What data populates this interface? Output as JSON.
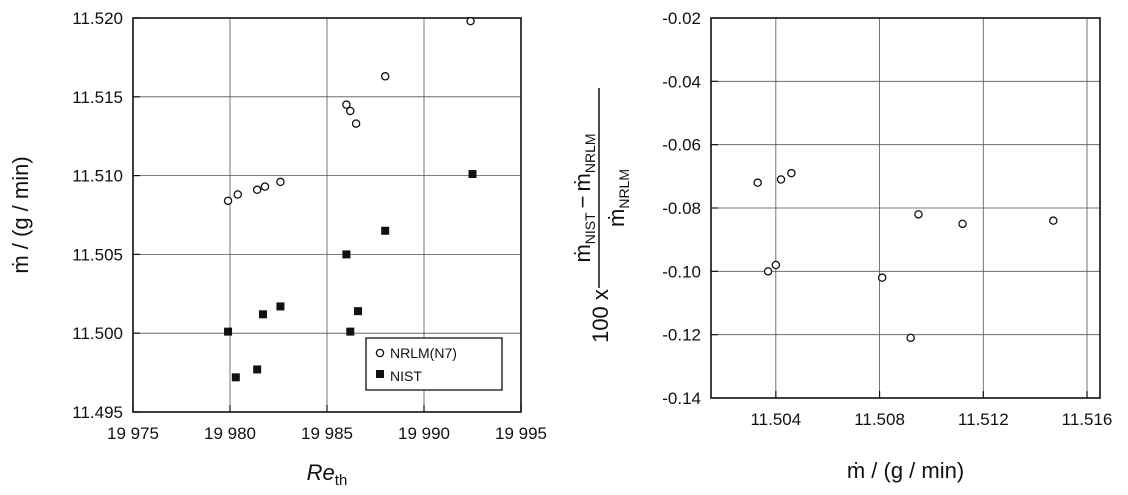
{
  "chart_data": [
    {
      "type": "scatter",
      "xlabel": "Re",
      "xlabel_sub": "th",
      "ylabel": "ṁ / (g / min)",
      "xlim": [
        19975,
        19995
      ],
      "ylim": [
        11.495,
        11.52
      ],
      "xticks": [
        19975,
        19980,
        19985,
        19990,
        19995
      ],
      "xtick_labels": [
        "19 975",
        "19 980",
        "19 985",
        "19 990",
        "19 995"
      ],
      "yticks": [
        11.495,
        11.5,
        11.505,
        11.51,
        11.515,
        11.52
      ],
      "ytick_labels": [
        "11.495",
        "11.500",
        "11.505",
        "11.510",
        "11.515",
        "11.520"
      ],
      "grid": true,
      "legend_position": "bottom-right",
      "series": [
        {
          "name": "NRLM(N7)",
          "marker": "open-circle",
          "color": "#111111",
          "x": [
            19979.9,
            19980.4,
            19981.4,
            19981.8,
            19982.6,
            19986.0,
            19986.2,
            19986.5,
            19988.0,
            19992.4
          ],
          "y": [
            11.5084,
            11.5088,
            11.5091,
            11.5093,
            11.5096,
            11.5145,
            11.5141,
            11.5133,
            11.5163,
            11.5198
          ]
        },
        {
          "name": "NIST",
          "marker": "filled-square",
          "color": "#111111",
          "x": [
            19979.9,
            19980.3,
            19981.4,
            19981.7,
            19982.6,
            19986.0,
            19986.2,
            19986.6,
            19988.0,
            19992.5
          ],
          "y": [
            11.5001,
            11.4972,
            11.4977,
            11.5012,
            11.5017,
            11.505,
            11.5001,
            11.5014,
            11.5065,
            11.5101
          ]
        }
      ]
    },
    {
      "type": "scatter",
      "xlabel": "ṁ / (g / min)",
      "ylabel_prefix": "100 x",
      "ylabel_num_a": "ṁ",
      "ylabel_num_a_sub": "NIST",
      "ylabel_minus": "−",
      "ylabel_num_b": "ṁ",
      "ylabel_num_b_sub": "NRLM",
      "ylabel_den": "ṁ",
      "ylabel_den_sub": "NRLM",
      "xlim": [
        11.5015,
        11.5165
      ],
      "ylim": [
        -0.14,
        -0.02
      ],
      "xticks": [
        11.504,
        11.508,
        11.512,
        11.516
      ],
      "xtick_labels": [
        "11.504",
        "11.508",
        "11.512",
        "11.516"
      ],
      "yticks": [
        -0.14,
        -0.12,
        -0.1,
        -0.08,
        -0.06,
        -0.04,
        -0.02
      ],
      "ytick_labels": [
        "-0.14",
        "-0.12",
        "-0.10",
        "-0.08",
        "-0.06",
        "-0.04",
        "-0.02"
      ],
      "grid": true,
      "series": [
        {
          "marker": "open-circle",
          "color": "#111111",
          "x": [
            11.5033,
            11.5037,
            11.504,
            11.5042,
            11.5046,
            11.5081,
            11.5092,
            11.5095,
            11.5112,
            11.5147
          ],
          "y": [
            -0.072,
            -0.1,
            -0.098,
            -0.071,
            -0.069,
            -0.102,
            -0.121,
            -0.082,
            -0.085,
            -0.084
          ]
        }
      ]
    }
  ]
}
